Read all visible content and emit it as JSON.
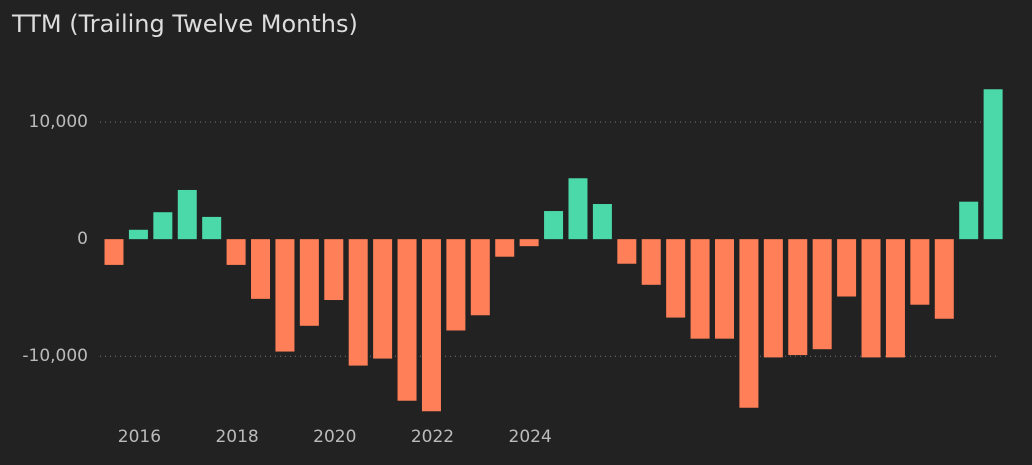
{
  "chart_data": {
    "type": "bar",
    "title": "TTM (Trailing Twelve Months)",
    "categories": [
      null,
      "2016",
      null,
      null,
      null,
      "2018",
      null,
      null,
      null,
      "2020",
      null,
      null,
      null,
      "2022",
      null,
      null,
      null,
      "2024",
      null,
      null,
      null,
      null,
      null,
      null,
      null,
      null,
      null,
      null,
      null,
      null,
      null,
      null,
      null,
      null,
      null,
      null,
      null
    ],
    "values": [
      -2200,
      800,
      2300,
      4200,
      1900,
      -2200,
      -5100,
      -9600,
      -7400,
      -5200,
      -10800,
      -10200,
      -13800,
      -14700,
      -7800,
      -6500,
      -1500,
      -600,
      2400,
      5200,
      3000,
      -2100,
      -3900,
      -6700,
      -8500,
      -8500,
      -14400,
      -10100,
      -9900,
      -9400,
      -4900,
      -10100,
      -10100,
      -5600,
      -6800,
      3200,
      12800
    ],
    "positive_color": "#4cd9a9",
    "negative_color": "#ff7f59",
    "ylim": [
      -16300,
      15300
    ],
    "yticks": [
      {
        "value": -10000,
        "label": "-10,000"
      },
      0,
      {
        "value": 10000,
        "label": "10,000"
      }
    ],
    "grid": true
  }
}
